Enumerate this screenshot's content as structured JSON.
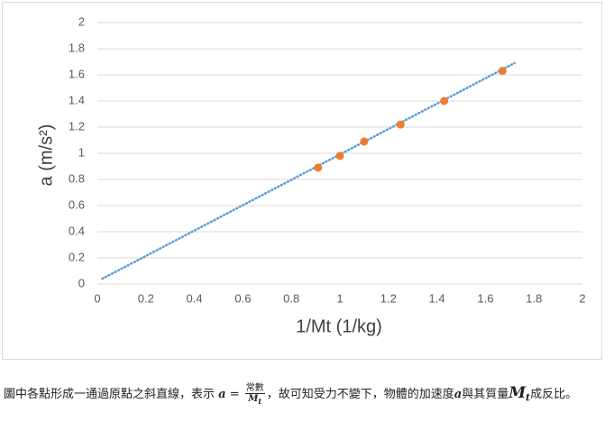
{
  "chart_data": {
    "type": "scatter",
    "x_label": "1/Mt (1/kg)",
    "y_label": "a (m/s²)",
    "series": [
      {
        "color": "#ed7d31",
        "x": [
          0.91,
          1.0,
          1.1,
          1.25,
          1.43,
          1.67
        ],
        "values": [
          0.89,
          0.98,
          1.09,
          1.22,
          1.4,
          1.63
        ]
      }
    ],
    "trendline": {
      "color": "#5b9bd5",
      "x": [
        0.02,
        1.72
      ],
      "values": [
        0.04,
        1.69
      ]
    },
    "xlim": [
      0,
      2
    ],
    "xticks": [
      0,
      0.2,
      0.4,
      0.6,
      0.8,
      1,
      1.2,
      1.4,
      1.6,
      1.8,
      2
    ],
    "ylim": [
      0,
      2
    ],
    "yticks": [
      0,
      0.2,
      0.4,
      0.6,
      0.8,
      1,
      1.2,
      1.4,
      1.6,
      1.8,
      2
    ],
    "grid": true
  },
  "caption": {
    "part1": "圖中各點形成一通過原點之斜直線，表示 ",
    "lhs": "a",
    "equals": " = ",
    "numerator": "常數",
    "denominator_base": "M",
    "denominator_sub": "t",
    "part2": "，故可知受力不變下，物體的加速度",
    "var_a": "a",
    "part3": "與其質量",
    "var_m": "M",
    "var_m_sub": "t",
    "part4": "成反比。"
  }
}
